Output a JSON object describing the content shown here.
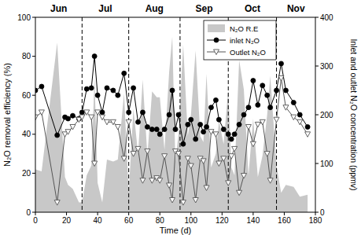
{
  "chart_data": {
    "type": "line",
    "xlabel": "Time (d)",
    "ylabel": "N₂O removal efficiency (%)",
    "y2label": "Inlet and outlet N₂O concentration (ppmv)",
    "x": [
      0,
      4,
      14,
      19,
      21,
      24,
      28,
      30,
      33,
      36,
      38,
      40,
      43,
      46,
      50,
      53,
      57,
      60,
      63,
      66,
      69,
      72,
      75,
      78,
      80,
      83,
      86,
      88,
      90,
      92,
      95,
      98,
      100,
      103,
      106,
      108,
      110,
      113,
      116,
      118,
      121,
      124,
      126,
      128,
      131,
      134,
      137,
      140,
      143,
      146,
      149,
      151,
      155,
      158,
      161,
      166,
      170,
      175
    ],
    "series": [
      {
        "name": "N₂O R.E",
        "type": "area",
        "color": "#c8c8c8",
        "values": [
          22,
          21,
          87,
          18,
          14,
          12,
          5,
          5,
          19,
          24,
          69,
          15,
          5,
          27,
          26,
          27,
          61,
          10,
          53,
          30,
          68,
          29,
          62,
          59,
          59,
          32,
          72,
          90,
          26,
          40,
          86,
          39,
          50,
          83,
          39,
          36,
          71,
          23,
          30,
          47,
          35,
          63,
          23,
          19,
          78,
          63,
          19,
          48,
          18,
          29,
          50,
          70,
          24,
          10,
          14,
          13,
          8,
          9
        ]
      },
      {
        "name": "inlet N₂O",
        "type": "line",
        "color": "#000000",
        "marker": "circle",
        "line_style": "solid",
        "axis": "y2",
        "values": [
          250,
          258,
          158,
          195,
          192,
          198,
          192,
          205,
          253,
          255,
          320,
          240,
          205,
          255,
          250,
          240,
          285,
          205,
          255,
          185,
          205,
          175,
          170,
          170,
          160,
          170,
          200,
          250,
          170,
          200,
          140,
          180,
          190,
          150,
          180,
          165,
          175,
          215,
          230,
          190,
          170,
          160,
          150,
          160,
          180,
          200,
          215,
          270,
          220,
          260,
          240,
          215,
          250,
          305,
          250,
          225,
          200,
          175
        ]
      },
      {
        "name": "Outlet N₂O",
        "type": "line",
        "color": "#555555",
        "marker": "triangle-down",
        "line_style": "solid",
        "axis": "y2",
        "values": [
          195,
          205,
          20,
          160,
          165,
          175,
          190,
          195,
          205,
          195,
          100,
          205,
          195,
          185,
          185,
          175,
          110,
          185,
          120,
          130,
          65,
          125,
          65,
          70,
          65,
          115,
          55,
          25,
          125,
          120,
          20,
          110,
          95,
          25,
          110,
          105,
          50,
          165,
          160,
          100,
          110,
          60,
          115,
          130,
          40,
          75,
          175,
          140,
          180,
          185,
          120,
          65,
          190,
          275,
          215,
          195,
          185,
          160
        ]
      }
    ],
    "xlim": [
      0,
      180
    ],
    "xticks": [
      0,
      20,
      40,
      60,
      80,
      100,
      120,
      140,
      160,
      180
    ],
    "ylim": [
      0,
      100
    ],
    "yticks": [
      0,
      20,
      40,
      60,
      80,
      100
    ],
    "y2lim": [
      0,
      400
    ],
    "y2ticks": [
      0,
      100,
      200,
      300,
      400
    ],
    "periods": [
      {
        "label": "Jun",
        "start": 0,
        "end": 30
      },
      {
        "label": "Jul",
        "start": 30,
        "end": 60
      },
      {
        "label": "Aug",
        "start": 60,
        "end": 93
      },
      {
        "label": "Sep",
        "start": 93,
        "end": 124
      },
      {
        "label": "Oct",
        "start": 124,
        "end": 155
      },
      {
        "label": "Nov",
        "start": 155,
        "end": 180
      }
    ],
    "legend": "upper right",
    "grid": false
  }
}
